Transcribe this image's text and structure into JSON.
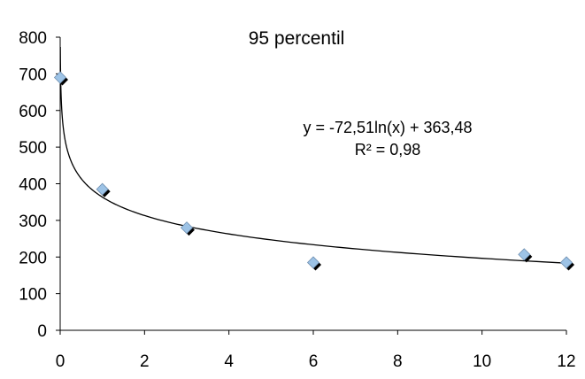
{
  "chart_data": {
    "type": "scatter",
    "title": "95 percentil",
    "xlabel": "",
    "ylabel": "",
    "xlim": [
      0,
      12
    ],
    "ylim": [
      0,
      800
    ],
    "x_ticks": [
      "0",
      "2",
      "4",
      "6",
      "8",
      "10",
      "12"
    ],
    "y_ticks": [
      "0",
      "100",
      "200",
      "300",
      "400",
      "500",
      "600",
      "700",
      "800"
    ],
    "grid": false,
    "legend": "none",
    "series": [
      {
        "points": [
          {
            "x": 0,
            "y": 690
          },
          {
            "x": 1,
            "y": 385
          },
          {
            "x": 3,
            "y": 280
          },
          {
            "x": 6,
            "y": 185
          },
          {
            "x": 11,
            "y": 207
          },
          {
            "x": 12,
            "y": 185
          }
        ],
        "marker": "diamond",
        "color": "#9dc3e6",
        "shadow_color": "#000000"
      }
    ],
    "trendline": {
      "type": "logarithmic",
      "a": -72.51,
      "b": 363.48,
      "color": "#000000",
      "equation_text": "y = -72,51ln(x) + 363,48",
      "r2_text": "R² = 0,98"
    }
  }
}
